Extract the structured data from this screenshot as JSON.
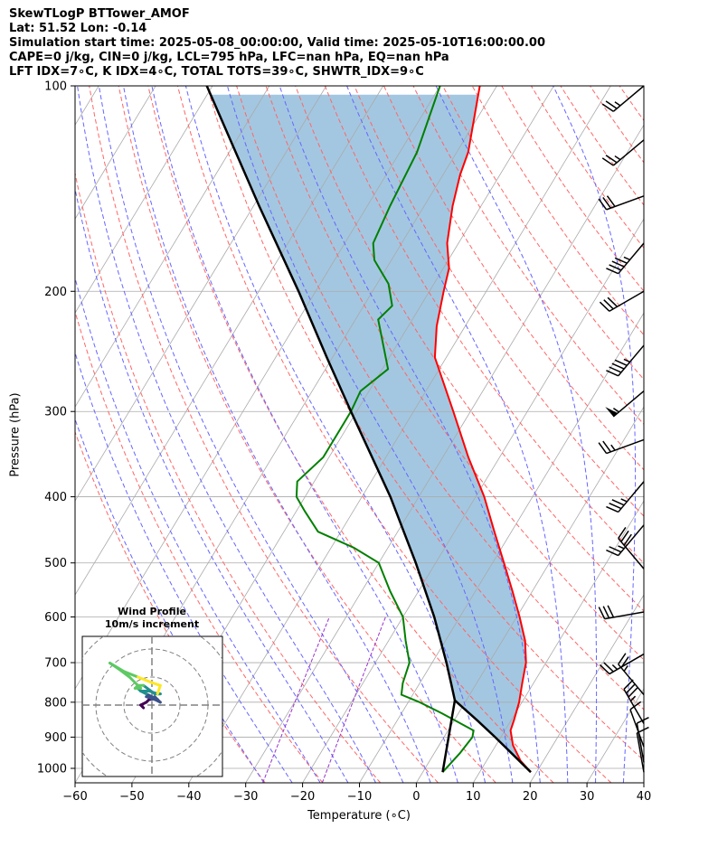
{
  "header": {
    "line1": "SkewTLogP BTTower_AMOF",
    "line2": "Lat: 51.52   Lon: -0.14",
    "line3": "Simulation start time: 2025-05-08_00:00:00, Valid time: 2025-05-10T16:00:00.00",
    "line4": "CAPE=0 j/kg, CIN=0 j/kg, LCL=795 hPa, LFC=nan hPa, EQ=nan hPa",
    "line5": "LFT IDX=7∘C, K IDX=4∘C, TOTAL TOTS=39∘C, SHWTR_IDX=9∘C"
  },
  "chart_data": {
    "type": "line",
    "chart_kind": "skew-T log-P diagram",
    "xlabel": "Temperature (∘C)",
    "ylabel": "Pressure (hPa)",
    "x_ticks": [
      -60,
      -50,
      -40,
      -30,
      -20,
      -10,
      0,
      10,
      20,
      30,
      40
    ],
    "y_ticks": [
      100,
      200,
      300,
      400,
      500,
      600,
      700,
      800,
      900,
      1000
    ],
    "xlim": [
      -60,
      40
    ],
    "ylim": [
      1050,
      100
    ],
    "y_scale": "log",
    "grid": true,
    "colors": {
      "temperature": "#ff0000",
      "dewpoint": "#008000",
      "parcel": "#000000",
      "cape_fill": "#9ec4df",
      "dry_adiabat": "#ff6666",
      "moist_adiabat": "#6666ff",
      "mixing_ratio": "#9933cc",
      "isotherm": "#aaaaaa"
    },
    "temperature_profile": [
      {
        "p": 1013,
        "t": 19.0
      },
      {
        "p": 975,
        "t": 16.0
      },
      {
        "p": 925,
        "t": 13.0
      },
      {
        "p": 880,
        "t": 11.0
      },
      {
        "p": 850,
        "t": 10.5
      },
      {
        "p": 800,
        "t": 9.5
      },
      {
        "p": 750,
        "t": 8.0
      },
      {
        "p": 700,
        "t": 6.5
      },
      {
        "p": 650,
        "t": 4.0
      },
      {
        "p": 600,
        "t": 0.5
      },
      {
        "p": 550,
        "t": -3.5
      },
      {
        "p": 500,
        "t": -8.0
      },
      {
        "p": 450,
        "t": -13.0
      },
      {
        "p": 400,
        "t": -18.5
      },
      {
        "p": 350,
        "t": -25.5
      },
      {
        "p": 300,
        "t": -33.0
      },
      {
        "p": 250,
        "t": -42.0
      },
      {
        "p": 225,
        "t": -45.0
      },
      {
        "p": 200,
        "t": -47.5
      },
      {
        "p": 185,
        "t": -49.0
      },
      {
        "p": 170,
        "t": -52.0
      },
      {
        "p": 150,
        "t": -55.0
      },
      {
        "p": 135,
        "t": -57.0
      },
      {
        "p": 125,
        "t": -58.0
      },
      {
        "p": 100,
        "t": -63.0
      }
    ],
    "dewpoint_profile": [
      {
        "p": 1013,
        "t": 3.5
      },
      {
        "p": 950,
        "t": 4.5
      },
      {
        "p": 900,
        "t": 5.0
      },
      {
        "p": 880,
        "t": 4.5
      },
      {
        "p": 830,
        "t": -3.0
      },
      {
        "p": 800,
        "t": -8.0
      },
      {
        "p": 780,
        "t": -12.0
      },
      {
        "p": 750,
        "t": -13.0
      },
      {
        "p": 700,
        "t": -14.0
      },
      {
        "p": 650,
        "t": -17.0
      },
      {
        "p": 600,
        "t": -20.0
      },
      {
        "p": 550,
        "t": -25.0
      },
      {
        "p": 500,
        "t": -30.0
      },
      {
        "p": 475,
        "t": -36.0
      },
      {
        "p": 450,
        "t": -44.0
      },
      {
        "p": 420,
        "t": -48.5
      },
      {
        "p": 400,
        "t": -51.5
      },
      {
        "p": 380,
        "t": -53.0
      },
      {
        "p": 350,
        "t": -51.0
      },
      {
        "p": 300,
        "t": -51.0
      },
      {
        "p": 280,
        "t": -51.5
      },
      {
        "p": 260,
        "t": -49.0
      },
      {
        "p": 220,
        "t": -56.0
      },
      {
        "p": 210,
        "t": -55.0
      },
      {
        "p": 195,
        "t": -58.0
      },
      {
        "p": 180,
        "t": -63.0
      },
      {
        "p": 170,
        "t": -65.0
      },
      {
        "p": 150,
        "t": -66.0
      },
      {
        "p": 125,
        "t": -67.0
      },
      {
        "p": 100,
        "t": -70.0
      }
    ],
    "parcel_profile": [
      {
        "p": 1013,
        "t": 19.0
      },
      {
        "p": 900,
        "t": 9.0
      },
      {
        "p": 850,
        "t": 4.0
      },
      {
        "p": 795,
        "t": -2.0
      },
      {
        "p": 750,
        "t": -4.5
      },
      {
        "p": 700,
        "t": -7.5
      },
      {
        "p": 600,
        "t": -14.5
      },
      {
        "p": 500,
        "t": -23.5
      },
      {
        "p": 400,
        "t": -35.0
      },
      {
        "p": 300,
        "t": -51.0
      },
      {
        "p": 250,
        "t": -61.0
      },
      {
        "p": 200,
        "t": -73.0
      },
      {
        "p": 150,
        "t": -89.0
      },
      {
        "p": 100,
        "t": -111.0
      }
    ],
    "dewpoint_to_lcl": [
      {
        "p": 1013,
        "t": 3.5
      },
      {
        "p": 795,
        "t": -2.0
      }
    ],
    "wind_barbs": [
      {
        "p": 100,
        "dir": 230,
        "kt": 25
      },
      {
        "p": 120,
        "dir": 230,
        "kt": 25
      },
      {
        "p": 145,
        "dir": 250,
        "kt": 30
      },
      {
        "p": 170,
        "dir": 220,
        "kt": 45
      },
      {
        "p": 200,
        "dir": 240,
        "kt": 30
      },
      {
        "p": 240,
        "dir": 220,
        "kt": 45
      },
      {
        "p": 280,
        "dir": 230,
        "kt": 55
      },
      {
        "p": 330,
        "dir": 250,
        "kt": 25
      },
      {
        "p": 380,
        "dir": 220,
        "kt": 35
      },
      {
        "p": 440,
        "dir": 220,
        "kt": 25
      },
      {
        "p": 510,
        "dir": 320,
        "kt": 30
      },
      {
        "p": 590,
        "dir": 260,
        "kt": 30
      },
      {
        "p": 680,
        "dir": 240,
        "kt": 25
      },
      {
        "p": 780,
        "dir": 320,
        "kt": 25
      },
      {
        "p": 860,
        "dir": 330,
        "kt": 35
      },
      {
        "p": 930,
        "dir": 340,
        "kt": 10
      },
      {
        "p": 980,
        "dir": 350,
        "kt": 10
      },
      {
        "p": 1013,
        "dir": 350,
        "kt": 10
      }
    ],
    "hodograph": {
      "title": "Wind Profile",
      "subtitle": "10m/s increment",
      "rings_ms": [
        10,
        20,
        30
      ],
      "range_ms": 25,
      "colormap": "viridis",
      "points_uv": [
        [
          -3,
          -1
        ],
        [
          -4,
          0
        ],
        [
          -2,
          1
        ],
        [
          -1,
          2
        ],
        [
          0,
          2
        ],
        [
          1,
          3
        ],
        [
          2,
          2
        ],
        [
          -1,
          3
        ],
        [
          -2,
          3
        ],
        [
          1,
          2
        ],
        [
          3,
          1
        ],
        [
          2,
          2
        ],
        [
          -2,
          4
        ],
        [
          -4,
          5
        ],
        [
          -5,
          6
        ],
        [
          -4,
          5
        ],
        [
          -1,
          5
        ],
        [
          2,
          4
        ],
        [
          3,
          4
        ],
        [
          1,
          4
        ],
        [
          -3,
          7
        ],
        [
          -5,
          7
        ],
        [
          -6,
          6
        ],
        [
          -4,
          6
        ],
        [
          -8,
          10
        ],
        [
          -12,
          13
        ],
        [
          -15,
          15
        ],
        [
          -10,
          12
        ],
        [
          -5,
          10
        ],
        [
          0,
          8
        ],
        [
          3,
          7
        ],
        [
          2,
          4
        ]
      ]
    }
  }
}
